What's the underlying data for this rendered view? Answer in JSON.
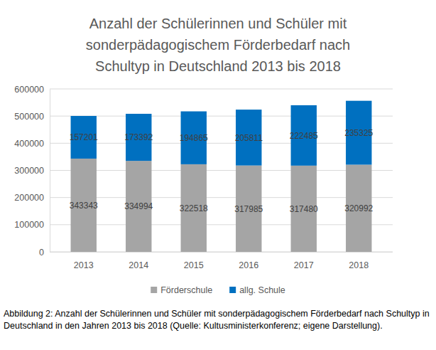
{
  "chart_data": {
    "type": "bar",
    "stacked": true,
    "title": "Anzahl der Schülerinnen und Schüler mit sonderpädagogischem Förderbedarf nach Schultyp in Deutschland 2013 bis 2018",
    "caption": "Abbildung 2: Anzahl der Schülerinnen und Schüler mit sonderpädagogischem Förderbedarf nach Schultyp in Deutschland in den Jahren 2013 bis 2018 (Quelle: Kultusministerkonferenz; eigene Darstellung).",
    "categories": [
      "2013",
      "2014",
      "2015",
      "2016",
      "2017",
      "2018"
    ],
    "series": [
      {
        "name": "Förderschule",
        "color": "#a5a5a5",
        "values": [
          343343,
          334994,
          322518,
          317985,
          317480,
          320992
        ]
      },
      {
        "name": "allg. Schule",
        "color": "#0070c0",
        "values": [
          157201,
          173392,
          194865,
          205811,
          222485,
          235325
        ]
      }
    ],
    "ylim": [
      0,
      600000
    ],
    "yticks": [
      0,
      100000,
      200000,
      300000,
      400000,
      500000,
      600000
    ],
    "grid": true,
    "legend": "bottom",
    "data_labels": true
  }
}
